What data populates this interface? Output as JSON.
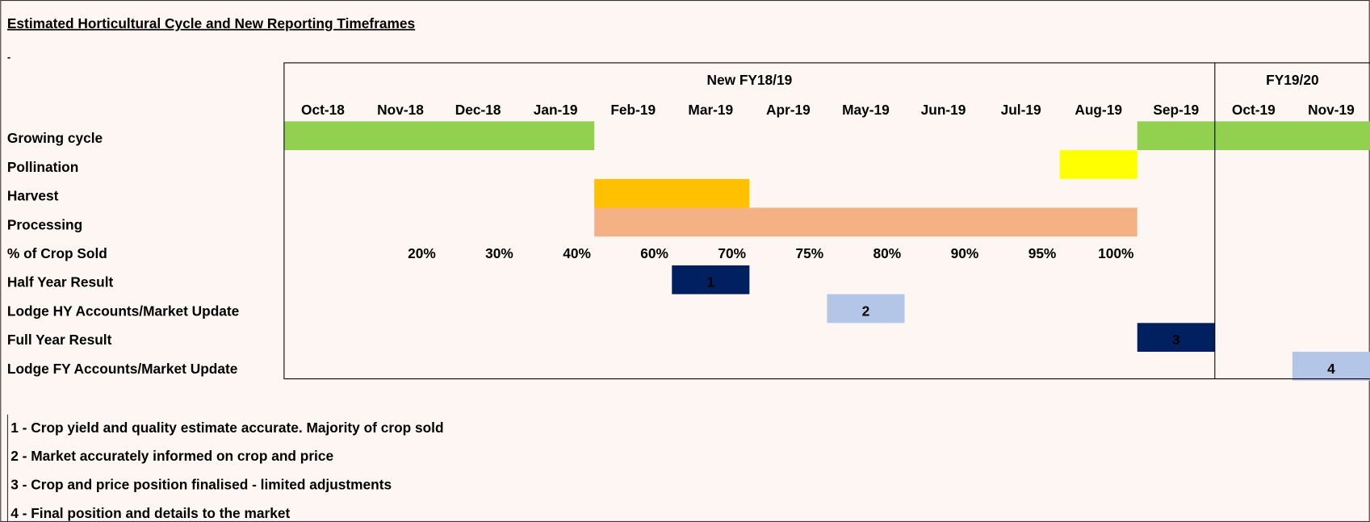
{
  "title": "Estimated Horticultural Cycle and New Reporting Timeframes",
  "marker": "-",
  "groups": [
    {
      "label": "New FY18/19",
      "from": "Oct-18",
      "to": "Sep-19"
    },
    {
      "label": "FY19/20",
      "from": "Oct-19",
      "to": "Nov-19"
    }
  ],
  "months": [
    "Oct-18",
    "Nov-18",
    "Dec-18",
    "Jan-19",
    "Feb-19",
    "Mar-19",
    "Apr-19",
    "May-19",
    "Jun-19",
    "Jul-19",
    "Aug-19",
    "Sep-19",
    "Oct-19",
    "Nov-19"
  ],
  "rows": [
    {
      "label": "Growing cycle",
      "spans": [
        {
          "from": "Oct-18",
          "to": "Jan-19",
          "color": "#92d050"
        },
        {
          "from": "Sep-19",
          "to": "Nov-19",
          "color": "#92d050"
        }
      ]
    },
    {
      "label": "Pollination",
      "spans": [
        {
          "from": "Aug-19",
          "to": "Aug-19",
          "color": "#ffff00"
        }
      ]
    },
    {
      "label": "Harvest",
      "spans": [
        {
          "from": "Feb-19",
          "to": "Mar-19",
          "color": "#ffc000"
        }
      ]
    },
    {
      "label": "Processing",
      "spans": [
        {
          "from": "Feb-19",
          "to": "Aug-19",
          "color": "#f4b183"
        }
      ]
    },
    {
      "label": "% of Crop Sold",
      "cells": [
        null,
        "20%",
        "30%",
        "40%",
        "60%",
        "70%",
        "75%",
        "80%",
        "90%",
        "95%",
        "100%",
        null,
        null,
        null
      ]
    },
    {
      "label": "Half Year Result",
      "spans": [
        {
          "from": "Mar-19",
          "to": "Mar-19",
          "color": "#002060",
          "label": "1",
          "text_color": "#ffffff"
        }
      ]
    },
    {
      "label": "Lodge  HY Accounts/Market Update",
      "spans": [
        {
          "from": "May-19",
          "to": "May-19",
          "color": "#b4c6e7",
          "label": "2",
          "text_color": "#000000"
        }
      ]
    },
    {
      "label": "Full Year Result",
      "spans": [
        {
          "from": "Sep-19",
          "to": "Sep-19",
          "color": "#002060",
          "label": "3",
          "text_color": "#ffffff"
        }
      ]
    },
    {
      "label": "Lodge FY Accounts/Market Update",
      "spans": [
        {
          "from": "Nov-19",
          "to": "Nov-19",
          "color": "#b4c6e7",
          "label": "4",
          "text_color": "#000000"
        }
      ]
    }
  ],
  "notes": [
    "1 - Crop yield and quality estimate accurate. Majority of crop sold",
    "2 - Market accurately informed on crop and price",
    "3 - Crop and price position finalised - limited adjustments",
    "4 - Final position and details to the market"
  ]
}
